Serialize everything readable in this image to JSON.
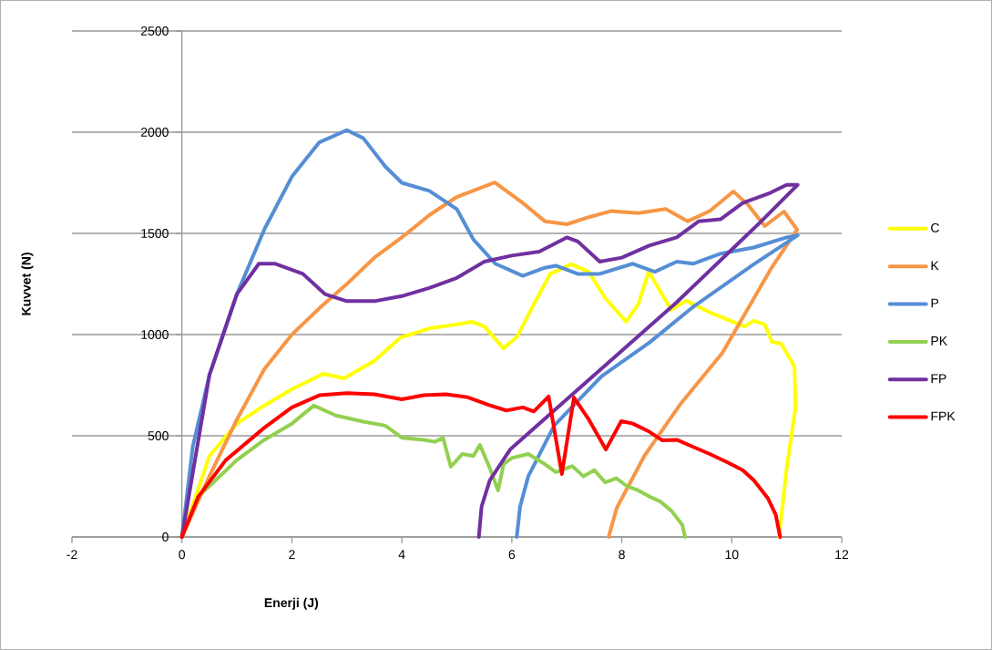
{
  "chart_data": {
    "type": "line",
    "xlabel": "Enerji (J)",
    "ylabel": "Kuvvet (N)",
    "xlim": [
      -2,
      12
    ],
    "ylim": [
      0,
      2500
    ],
    "xticks": [
      -2,
      0,
      2,
      4,
      6,
      8,
      10,
      12
    ],
    "yticks": [
      0,
      500,
      1000,
      1500,
      2000,
      2500
    ],
    "grid": "y",
    "legend": "right",
    "marker": "none",
    "line_style": "solid",
    "series": [
      {
        "name": "C",
        "color": "#ffff00",
        "x": [
          0,
          0.5,
          1,
          1.5,
          2,
          2.57,
          2.95,
          3.5,
          3.98,
          4.5,
          5,
          5.27,
          5.5,
          5.85,
          6.1,
          6.4,
          6.7,
          7.08,
          7.4,
          7.7,
          8.08,
          8.3,
          8.49,
          8.9,
          9.17,
          9.6,
          10.23,
          10.4,
          10.6,
          10.73,
          10.9,
          11.14,
          11.16,
          11.0,
          10.86
        ],
        "values": [
          0,
          400,
          560,
          650,
          730,
          806,
          784,
          870,
          986,
          1030,
          1050,
          1063,
          1040,
          932,
          990,
          1150,
          1300,
          1347,
          1310,
          1180,
          1063,
          1150,
          1311,
          1122,
          1167,
          1110,
          1040,
          1068,
          1050,
          964,
          955,
          842,
          640,
          342,
          0
        ]
      },
      {
        "name": "K",
        "color": "#f79646",
        "x": [
          0,
          0.5,
          1,
          1.5,
          2,
          2.5,
          3,
          3.5,
          4,
          4.5,
          5,
          5.69,
          6.2,
          6.6,
          7,
          7.4,
          7.8,
          8.3,
          8.8,
          9.2,
          9.6,
          10.03,
          10.3,
          10.6,
          10.95,
          11.19,
          10.73,
          10.3,
          9.83,
          9.07,
          8.41,
          7.91,
          7.76
        ],
        "values": [
          0,
          300,
          580,
          830,
          1000,
          1130,
          1250,
          1380,
          1480,
          1590,
          1680,
          1752,
          1650,
          1560,
          1545,
          1580,
          1610,
          1600,
          1620,
          1560,
          1610,
          1707,
          1640,
          1536,
          1608,
          1518,
          1333,
          1130,
          910,
          658,
          400,
          144,
          0
        ]
      },
      {
        "name": "P",
        "color": "#558ed5",
        "x": [
          0,
          0.2,
          0.5,
          1,
          1.5,
          2,
          2.5,
          3,
          3.3,
          3.7,
          4,
          4.5,
          5,
          5.3,
          5.7,
          6.2,
          6.6,
          6.8,
          7.2,
          7.6,
          8.2,
          8.6,
          9,
          9.3,
          9.8,
          10.4,
          11,
          11.2,
          10.4,
          9.29,
          8.5,
          7.63,
          6.77,
          6.3,
          6.15,
          6.09
        ],
        "values": [
          0,
          450,
          800,
          1200,
          1520,
          1780,
          1950,
          2010,
          1970,
          1830,
          1750,
          1710,
          1620,
          1470,
          1350,
          1290,
          1330,
          1340,
          1300,
          1300,
          1350,
          1310,
          1360,
          1350,
          1400,
          1430,
          1480,
          1490,
          1347,
          1135,
          960,
          793,
          550,
          300,
          150,
          0
        ]
      },
      {
        "name": "PK",
        "color": "#92d050",
        "x": [
          0,
          0.3,
          1,
          1.5,
          2,
          2.4,
          2.8,
          3.3,
          3.7,
          4,
          4.4,
          4.6,
          4.75,
          4.89,
          5.1,
          5.3,
          5.42,
          5.6,
          5.75,
          5.85,
          6,
          6.3,
          6.6,
          6.8,
          7.1,
          7.3,
          7.5,
          7.7,
          7.9,
          8.1,
          8.3,
          8.5,
          8.7,
          8.9,
          9.1,
          9.15
        ],
        "values": [
          0,
          200,
          380,
          480,
          560,
          649,
          600,
          570,
          550,
          490,
          480,
          470,
          490,
          347,
          410,
          400,
          455,
          340,
          230,
          360,
          390,
          410,
          360,
          320,
          350,
          300,
          330,
          270,
          290,
          250,
          230,
          200,
          175,
          130,
          60,
          0
        ]
      },
      {
        "name": "FP",
        "color": "#7030a0",
        "x": [
          0,
          0.5,
          1,
          1.4,
          1.7,
          2.2,
          2.6,
          3,
          3.5,
          4,
          4.5,
          5,
          5.5,
          6,
          6.5,
          7,
          7.2,
          7.6,
          8,
          8.5,
          9,
          9.4,
          9.8,
          10.2,
          10.7,
          11,
          11.2,
          10.5,
          10,
          9,
          8,
          7,
          5.97,
          5.6,
          5.45,
          5.4
        ],
        "values": [
          0,
          800,
          1200,
          1350,
          1350,
          1300,
          1200,
          1165,
          1165,
          1190,
          1230,
          1280,
          1360,
          1390,
          1410,
          1480,
          1460,
          1360,
          1380,
          1440,
          1480,
          1560,
          1570,
          1650,
          1700,
          1740,
          1740,
          1550,
          1420,
          1160,
          920,
          680,
          432,
          280,
          150,
          0
        ]
      },
      {
        "name": "FPK",
        "color": "#ff0000",
        "x": [
          0,
          0.3,
          0.8,
          1.5,
          2,
          2.5,
          3,
          3.5,
          4,
          4.4,
          4.8,
          5.2,
          5.6,
          5.9,
          6.2,
          6.4,
          6.67,
          6.91,
          7.13,
          7.4,
          7.71,
          7.99,
          8.2,
          8.5,
          8.74,
          9.0,
          9.29,
          9.6,
          9.95,
          10.2,
          10.4,
          10.66,
          10.8,
          10.88
        ],
        "values": [
          0,
          200,
          380,
          540,
          640,
          700,
          710,
          705,
          680,
          700,
          705,
          690,
          650,
          625,
          640,
          620,
          694,
          311,
          689,
          580,
          432,
          572,
          560,
          520,
          477,
          480,
          446,
          410,
          365,
          330,
          280,
          190,
          110,
          0
        ]
      }
    ]
  }
}
